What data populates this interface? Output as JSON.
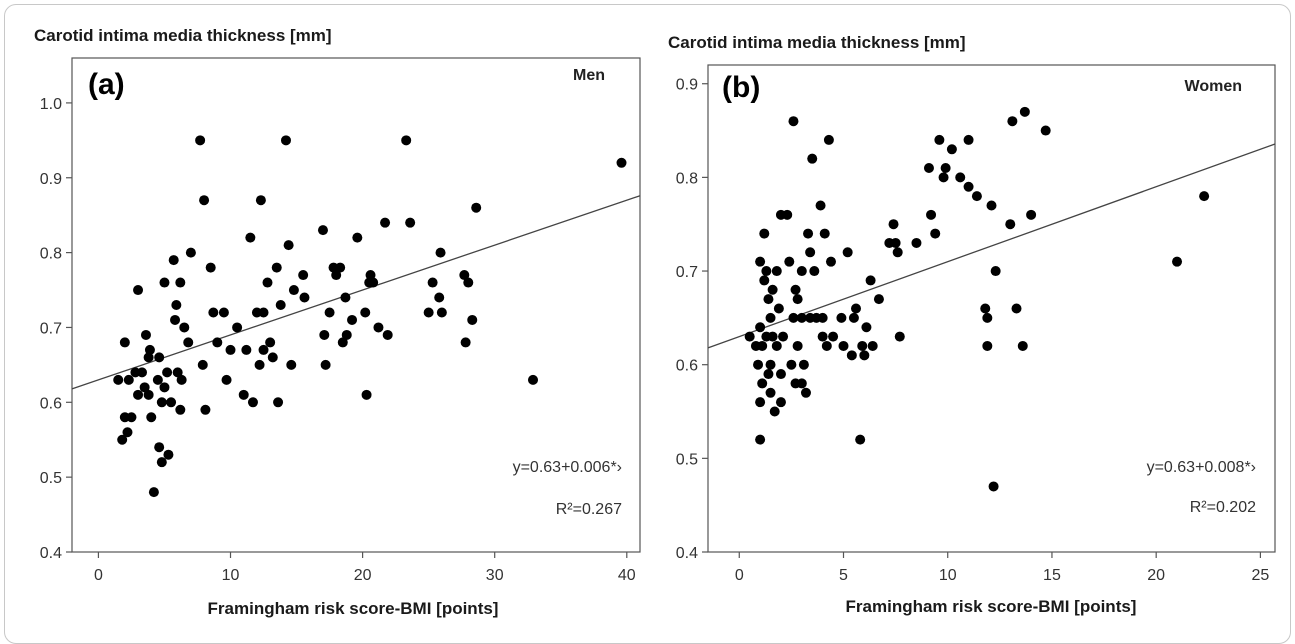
{
  "chart_data": [
    {
      "type": "scatter",
      "panel": "(a)",
      "group": "Men",
      "ylabel": "Carotid intima media thickness [mm]",
      "xlabel": "Framingham risk score-BMI [points]",
      "xlim": [
        -2,
        41
      ],
      "ylim": [
        0.4,
        1.06
      ],
      "xticks": [
        "0",
        "10",
        "20",
        "30",
        "40"
      ],
      "yticks": [
        "0.4",
        "0.5",
        "0.6",
        "0.7",
        "0.8",
        "0.9",
        "1.0"
      ],
      "equation": "y=0.63+0.006*›",
      "r2": "R²=0.267",
      "fit": {
        "intercept": 0.63,
        "slope": 0.006
      },
      "points": [
        [
          1.5,
          0.63
        ],
        [
          1.8,
          0.55
        ],
        [
          2,
          0.58
        ],
        [
          2,
          0.68
        ],
        [
          2.2,
          0.56
        ],
        [
          2.3,
          0.63
        ],
        [
          2.5,
          0.58
        ],
        [
          2.8,
          0.64
        ],
        [
          3,
          0.75
        ],
        [
          3,
          0.61
        ],
        [
          3.3,
          0.64
        ],
        [
          3.5,
          0.62
        ],
        [
          3.6,
          0.69
        ],
        [
          3.8,
          0.66
        ],
        [
          3.8,
          0.61
        ],
        [
          3.9,
          0.67
        ],
        [
          4,
          0.58
        ],
        [
          4.2,
          0.48
        ],
        [
          4.5,
          0.63
        ],
        [
          4.6,
          0.54
        ],
        [
          4.6,
          0.66
        ],
        [
          4.8,
          0.52
        ],
        [
          4.8,
          0.6
        ],
        [
          5,
          0.62
        ],
        [
          5,
          0.76
        ],
        [
          5.2,
          0.64
        ],
        [
          5.3,
          0.53
        ],
        [
          5.5,
          0.6
        ],
        [
          5.7,
          0.79
        ],
        [
          5.8,
          0.71
        ],
        [
          5.9,
          0.73
        ],
        [
          6,
          0.64
        ],
        [
          6.2,
          0.59
        ],
        [
          6.2,
          0.76
        ],
        [
          6.3,
          0.63
        ],
        [
          6.5,
          0.7
        ],
        [
          6.8,
          0.68
        ],
        [
          7,
          0.8
        ],
        [
          7.7,
          0.95
        ],
        [
          7.9,
          0.65
        ],
        [
          8,
          0.87
        ],
        [
          8.1,
          0.59
        ],
        [
          8.5,
          0.78
        ],
        [
          8.7,
          0.72
        ],
        [
          9,
          0.68
        ],
        [
          9.5,
          0.72
        ],
        [
          9.7,
          0.63
        ],
        [
          10,
          0.67
        ],
        [
          10.5,
          0.7
        ],
        [
          11,
          0.61
        ],
        [
          11.2,
          0.67
        ],
        [
          11.5,
          0.82
        ],
        [
          11.7,
          0.6
        ],
        [
          12,
          0.72
        ],
        [
          12.2,
          0.65
        ],
        [
          12.3,
          0.87
        ],
        [
          12.5,
          0.72
        ],
        [
          12.5,
          0.67
        ],
        [
          12.8,
          0.76
        ],
        [
          13,
          0.68
        ],
        [
          13.2,
          0.66
        ],
        [
          13.5,
          0.78
        ],
        [
          13.6,
          0.6
        ],
        [
          13.8,
          0.73
        ],
        [
          14.2,
          0.95
        ],
        [
          14.4,
          0.81
        ],
        [
          14.6,
          0.65
        ],
        [
          14.8,
          0.75
        ],
        [
          15.5,
          0.77
        ],
        [
          15.6,
          0.74
        ],
        [
          17,
          0.83
        ],
        [
          17.1,
          0.69
        ],
        [
          17.2,
          0.65
        ],
        [
          17.5,
          0.72
        ],
        [
          17.8,
          0.78
        ],
        [
          18,
          0.77
        ],
        [
          18.3,
          0.78
        ],
        [
          18.5,
          0.68
        ],
        [
          18.7,
          0.74
        ],
        [
          18.8,
          0.69
        ],
        [
          19.2,
          0.71
        ],
        [
          19.6,
          0.82
        ],
        [
          20.2,
          0.72
        ],
        [
          20.3,
          0.61
        ],
        [
          20.5,
          0.76
        ],
        [
          20.6,
          0.77
        ],
        [
          20.8,
          0.76
        ],
        [
          21.2,
          0.7
        ],
        [
          21.7,
          0.84
        ],
        [
          21.9,
          0.69
        ],
        [
          23.3,
          0.95
        ],
        [
          23.6,
          0.84
        ],
        [
          25,
          0.72
        ],
        [
          25.3,
          0.76
        ],
        [
          25.8,
          0.74
        ],
        [
          25.9,
          0.8
        ],
        [
          26,
          0.72
        ],
        [
          27.7,
          0.77
        ],
        [
          27.8,
          0.68
        ],
        [
          28,
          0.76
        ],
        [
          28.3,
          0.71
        ],
        [
          28.6,
          0.86
        ],
        [
          32.9,
          0.63
        ],
        [
          39.6,
          0.92
        ]
      ]
    },
    {
      "type": "scatter",
      "panel": "(b)",
      "group": "Women",
      "ylabel": "Carotid intima media thickness [mm]",
      "xlabel": "Framingham risk score-BMI [points]",
      "xlim": [
        -1.5,
        25.7
      ],
      "ylim": [
        0.4,
        0.92
      ],
      "xticks": [
        "0",
        "5",
        "10",
        "15",
        "20",
        "25"
      ],
      "yticks": [
        "0.4",
        "0.5",
        "0.6",
        "0.7",
        "0.8",
        "0.9"
      ],
      "equation": "y=0.63+0.008*›",
      "r2": "R²=0.202",
      "fit": {
        "intercept": 0.63,
        "slope": 0.008
      },
      "points": [
        [
          0.5,
          0.63
        ],
        [
          0.8,
          0.62
        ],
        [
          0.9,
          0.6
        ],
        [
          1,
          0.64
        ],
        [
          1,
          0.52
        ],
        [
          1,
          0.56
        ],
        [
          1,
          0.71
        ],
        [
          1.1,
          0.62
        ],
        [
          1.1,
          0.58
        ],
        [
          1.2,
          0.69
        ],
        [
          1.2,
          0.74
        ],
        [
          1.3,
          0.63
        ],
        [
          1.3,
          0.7
        ],
        [
          1.4,
          0.67
        ],
        [
          1.4,
          0.59
        ],
        [
          1.5,
          0.6
        ],
        [
          1.5,
          0.65
        ],
        [
          1.5,
          0.57
        ],
        [
          1.6,
          0.63
        ],
        [
          1.6,
          0.68
        ],
        [
          1.7,
          0.55
        ],
        [
          1.8,
          0.7
        ],
        [
          1.8,
          0.62
        ],
        [
          1.9,
          0.66
        ],
        [
          2,
          0.59
        ],
        [
          2,
          0.76
        ],
        [
          2,
          0.56
        ],
        [
          2.1,
          0.63
        ],
        [
          2.3,
          0.76
        ],
        [
          2.4,
          0.71
        ],
        [
          2.5,
          0.6
        ],
        [
          2.6,
          0.86
        ],
        [
          2.6,
          0.65
        ],
        [
          2.7,
          0.68
        ],
        [
          2.7,
          0.58
        ],
        [
          2.8,
          0.67
        ],
        [
          2.8,
          0.62
        ],
        [
          3,
          0.65
        ],
        [
          3,
          0.58
        ],
        [
          3,
          0.7
        ],
        [
          3.1,
          0.6
        ],
        [
          3.2,
          0.57
        ],
        [
          3.3,
          0.74
        ],
        [
          3.4,
          0.72
        ],
        [
          3.4,
          0.65
        ],
        [
          3.5,
          0.82
        ],
        [
          3.6,
          0.7
        ],
        [
          3.7,
          0.65
        ],
        [
          3.9,
          0.77
        ],
        [
          4,
          0.63
        ],
        [
          4,
          0.65
        ],
        [
          4.1,
          0.74
        ],
        [
          4.2,
          0.62
        ],
        [
          4.3,
          0.84
        ],
        [
          4.4,
          0.71
        ],
        [
          4.5,
          0.63
        ],
        [
          4.9,
          0.65
        ],
        [
          5,
          0.62
        ],
        [
          5.2,
          0.72
        ],
        [
          5.4,
          0.61
        ],
        [
          5.5,
          0.65
        ],
        [
          5.6,
          0.66
        ],
        [
          5.8,
          0.52
        ],
        [
          5.9,
          0.62
        ],
        [
          6,
          0.61
        ],
        [
          6.1,
          0.64
        ],
        [
          6.3,
          0.69
        ],
        [
          6.4,
          0.62
        ],
        [
          6.7,
          0.67
        ],
        [
          7.2,
          0.73
        ],
        [
          7.4,
          0.75
        ],
        [
          7.5,
          0.73
        ],
        [
          7.6,
          0.72
        ],
        [
          7.7,
          0.63
        ],
        [
          8.5,
          0.73
        ],
        [
          9.1,
          0.81
        ],
        [
          9.2,
          0.76
        ],
        [
          9.4,
          0.74
        ],
        [
          9.6,
          0.84
        ],
        [
          9.8,
          0.8
        ],
        [
          9.9,
          0.81
        ],
        [
          10.2,
          0.83
        ],
        [
          10.6,
          0.8
        ],
        [
          11,
          0.84
        ],
        [
          11,
          0.79
        ],
        [
          11.4,
          0.78
        ],
        [
          11.8,
          0.66
        ],
        [
          11.9,
          0.65
        ],
        [
          11.9,
          0.62
        ],
        [
          12.1,
          0.77
        ],
        [
          12.2,
          0.47
        ],
        [
          12.3,
          0.7
        ],
        [
          13,
          0.75
        ],
        [
          13.1,
          0.86
        ],
        [
          13.3,
          0.66
        ],
        [
          13.6,
          0.62
        ],
        [
          13.7,
          0.87
        ],
        [
          14,
          0.76
        ],
        [
          14.7,
          0.85
        ],
        [
          21,
          0.71
        ],
        [
          22.3,
          0.78
        ]
      ]
    }
  ]
}
